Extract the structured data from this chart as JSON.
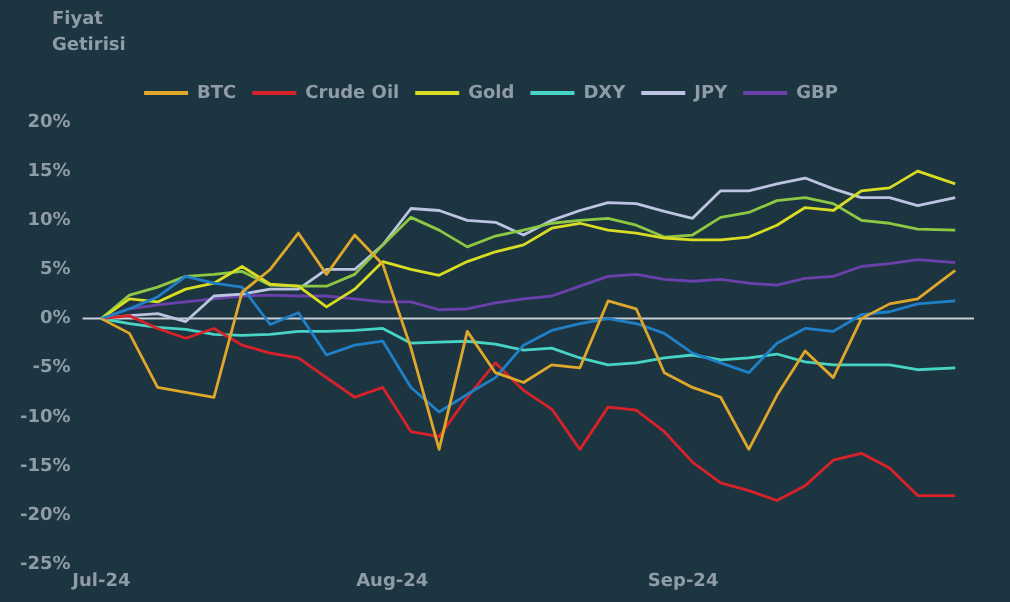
{
  "chart_data": {
    "type": "line",
    "ylabel": "Fiyat Getirisi",
    "x": [
      "2024-07-01",
      "2024-07-04",
      "2024-07-07",
      "2024-07-10",
      "2024-07-13",
      "2024-07-16",
      "2024-07-19",
      "2024-07-22",
      "2024-07-25",
      "2024-07-28",
      "2024-07-31",
      "2024-08-03",
      "2024-08-06",
      "2024-08-09",
      "2024-08-12",
      "2024-08-15",
      "2024-08-18",
      "2024-08-21",
      "2024-08-24",
      "2024-08-27",
      "2024-08-30",
      "2024-09-02",
      "2024-09-05",
      "2024-09-08",
      "2024-09-11",
      "2024-09-14",
      "2024-09-17",
      "2024-09-20",
      "2024-09-23",
      "2024-09-26",
      "2024-09-30"
    ],
    "series": [
      {
        "name": "BTC",
        "color": "#e0a82a",
        "values": [
          0,
          -1.5,
          -7,
          -7.5,
          -8,
          2.7,
          5,
          8.7,
          4.5,
          8.5,
          5.5,
          -3,
          -13.3,
          -1.3,
          -5.5,
          -6.5,
          -4.7,
          -5,
          1.8,
          1,
          -5.5,
          -7,
          -8,
          -13.3,
          -7.8,
          -3.3,
          -6,
          0,
          1.5,
          2,
          4.9
        ]
      },
      {
        "color": "#1f80c8",
        "values": [
          0,
          1,
          2.2,
          4.3,
          3.6,
          3.2,
          -0.6,
          0.6,
          -3.7,
          -2.7,
          -2.3,
          -7,
          -9.5,
          -7.7,
          -6,
          -2.7,
          -1.2,
          -0.5,
          0,
          -0.5,
          -1.5,
          -3.5,
          -4.5,
          -5.5,
          -2.5,
          -1,
          -1.3,
          0.4,
          0.7,
          1.5,
          1.8
        ]
      },
      {
        "name": "Crude Oil",
        "color": "#d8222a",
        "values": [
          0,
          0.3,
          -1,
          -2,
          -1,
          -2.7,
          -3.5,
          -4,
          -6,
          -8,
          -7,
          -11.5,
          -12,
          -8,
          -4.5,
          -7.3,
          -9.2,
          -13.3,
          -9,
          -9.3,
          -11.5,
          -14.6,
          -16.7,
          -17.5,
          -18.5,
          -17,
          -14.4,
          -13.7,
          -15.2,
          -18,
          -18
        ]
      },
      {
        "name": "Gold",
        "color": "#d8dc22",
        "values": [
          0,
          2,
          1.7,
          3,
          3.6,
          5.3,
          3.5,
          3.3,
          1.2,
          3,
          5.8,
          5,
          4.4,
          5.8,
          6.8,
          7.5,
          9.2,
          9.7,
          9,
          8.7,
          8.2,
          8,
          8,
          8.3,
          9.5,
          11.3,
          11,
          13,
          13.3,
          15,
          13.7
        ]
      },
      {
        "color": "#8cc844",
        "values": [
          0,
          2.4,
          3.2,
          4.3,
          4.5,
          4.8,
          3.4,
          3.3,
          3.3,
          4.5,
          7.5,
          10.3,
          9,
          7.3,
          8.4,
          9,
          9.7,
          10,
          10.2,
          9.5,
          8.3,
          8.5,
          10.3,
          10.8,
          12,
          12.3,
          11.7,
          10,
          9.7,
          9.1,
          9
        ]
      },
      {
        "name": "DXY",
        "color": "#48d4c4",
        "values": [
          0,
          -0.5,
          -0.9,
          -1.1,
          -1.6,
          -1.7,
          -1.6,
          -1.3,
          -1.3,
          -1.2,
          -1,
          -2.5,
          -2.4,
          -2.3,
          -2.6,
          -3.2,
          -3,
          -4,
          -4.7,
          -4.5,
          -4,
          -3.7,
          -4.2,
          -4,
          -3.6,
          -4.4,
          -4.7,
          -4.7,
          -4.7,
          -5.2,
          -5
        ]
      },
      {
        "name": "JPY",
        "color": "#bcc4e2",
        "values": [
          0,
          0.3,
          0.5,
          -0.3,
          2.3,
          2.5,
          3,
          3,
          5,
          5,
          7.5,
          11.2,
          11,
          10,
          9.8,
          8.5,
          10,
          11,
          11.8,
          11.7,
          10.9,
          10.2,
          13,
          13,
          13.7,
          14.3,
          13.2,
          12.3,
          12.3,
          11.5,
          12.3
        ]
      },
      {
        "name": "GBP",
        "color": "#6a40aa",
        "values": [
          0,
          1,
          1.4,
          1.7,
          2,
          2.3,
          2.4,
          2.3,
          2.3,
          2,
          1.7,
          1.7,
          0.9,
          1,
          1.6,
          2,
          2.3,
          3.3,
          4.3,
          4.5,
          4,
          3.8,
          4,
          3.6,
          3.4,
          4.1,
          4.3,
          5.3,
          5.6,
          6,
          5.7
        ]
      }
    ],
    "xlim": [
      "2024-06-29",
      "2024-10-02"
    ],
    "xticks": [
      {
        "value": "2024-07-01",
        "label": "Jul-24"
      },
      {
        "value": "2024-08-01",
        "label": "Aug-24"
      },
      {
        "value": "2024-09-01",
        "label": "Sep-24"
      }
    ],
    "ylim": [
      -25,
      20
    ],
    "yticks": [
      {
        "value": -25,
        "label": "-25%"
      },
      {
        "value": -20,
        "label": "-20%"
      },
      {
        "value": -15,
        "label": "-15%"
      },
      {
        "value": -10,
        "label": "-10%"
      },
      {
        "value": -5,
        "label": "-5%"
      },
      {
        "value": 0,
        "label": "0%"
      },
      {
        "value": 5,
        "label": "5%"
      },
      {
        "value": 10,
        "label": "10%"
      },
      {
        "value": 15,
        "label": "15%"
      },
      {
        "value": 20,
        "label": "20%"
      }
    ],
    "ref_lines": [
      {
        "axis": "y",
        "value": 0,
        "color": "#c8d0d8"
      }
    ],
    "legend": "top",
    "grid": false
  }
}
